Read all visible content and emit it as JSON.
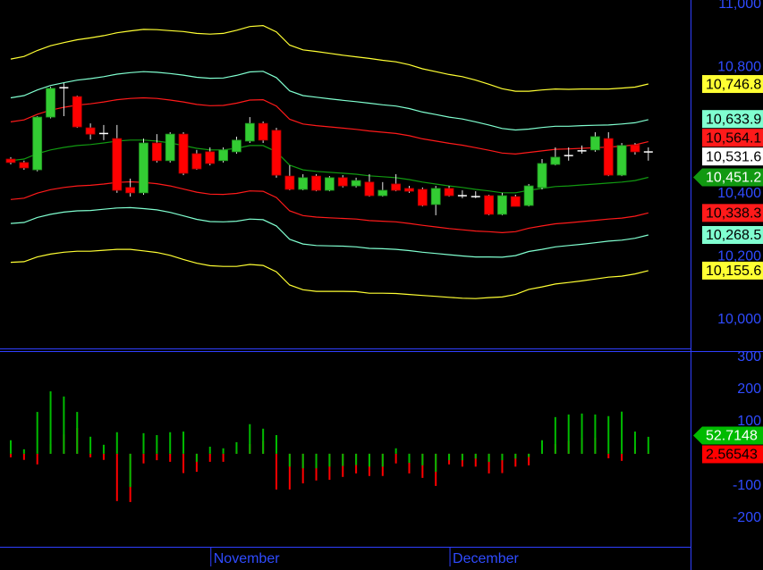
{
  "chart_data": [
    {
      "type": "candlestick",
      "categories": [
        null,
        null,
        null,
        null,
        null,
        null,
        null,
        null,
        null,
        null,
        null,
        null,
        null,
        null,
        null,
        "November",
        null,
        null,
        null,
        null,
        null,
        null,
        null,
        null,
        null,
        null,
        null,
        null,
        null,
        null,
        null,
        null,
        null,
        "December",
        null,
        null,
        null,
        null,
        null,
        null,
        null,
        null,
        null,
        null,
        null,
        null,
        null,
        null,
        null
      ],
      "open": [
        10509,
        10498,
        10475,
        10642,
        10735,
        10707,
        10608,
        10590,
        10574,
        10419,
        10402,
        10560,
        10504,
        10588,
        10526,
        10532,
        10504,
        10532,
        10566,
        10622,
        10600,
        10455,
        10413,
        10455,
        10410,
        10450,
        10424,
        10436,
        10393,
        10430,
        10416,
        10413,
        10365,
        10416,
        10393,
        10390,
        10393,
        10334,
        10390,
        10362,
        10419,
        10492,
        10520,
        10535,
        10538,
        10574,
        10458,
        10554,
        10531.6
      ],
      "high": [
        10515,
        10504,
        10645,
        10738,
        10750,
        10710,
        10622,
        10617,
        10617,
        10447,
        10574,
        10588,
        10594,
        10594,
        10538,
        10546,
        10546,
        10580,
        10642,
        10628,
        10608,
        10489,
        10461,
        10461,
        10455,
        10458,
        10450,
        10461,
        10436,
        10461,
        10424,
        10419,
        10424,
        10424,
        10410,
        10407,
        10396,
        10402,
        10396,
        10430,
        10509,
        10546,
        10546,
        10552,
        10594,
        10594,
        10560,
        10560,
        10546
      ],
      "low": [
        10492,
        10475,
        10470,
        10638,
        10645,
        10608,
        10571,
        10569,
        10402,
        10390,
        10396,
        10498,
        10498,
        10458,
        10475,
        10489,
        10498,
        10526,
        10560,
        10560,
        10450,
        10410,
        10410,
        10407,
        10407,
        10419,
        10419,
        10390,
        10390,
        10407,
        10402,
        10359,
        10331,
        10390,
        10385,
        10385,
        10331,
        10331,
        10359,
        10359,
        10413,
        10489,
        10504,
        10526,
        10532,
        10455,
        10455,
        10523,
        10504
      ],
      "close": [
        10498,
        10481,
        10642,
        10733,
        10735,
        10611,
        10588,
        10590,
        10410,
        10402,
        10560,
        10504,
        10588,
        10464,
        10478,
        10495,
        10538,
        10569,
        10622,
        10569,
        10458,
        10413,
        10450,
        10410,
        10450,
        10424,
        10441,
        10393,
        10410,
        10410,
        10407,
        10362,
        10416,
        10393,
        10393,
        10390,
        10334,
        10393,
        10359,
        10424,
        10495,
        10515,
        10520,
        10535,
        10580,
        10458,
        10552,
        10532,
        10531.6
      ],
      "close_label": "10,531.6",
      "up_color": "#33cc33",
      "down_color": "#ff0000",
      "ylim": [
        9909,
        11013
      ],
      "yticks": [
        {
          "value": 10000,
          "label": "10,000"
        },
        {
          "value": 10200,
          "label": "10,200"
        },
        {
          "value": 10400,
          "label": "10,400"
        },
        {
          "value": 10800,
          "label": "10,800"
        },
        {
          "value": 11000,
          "label": "11,000"
        }
      ],
      "series": [
        {
          "color": "#ffff33",
          "last_label": "10,746.8",
          "values": [
            10826,
            10834,
            10853,
            10868,
            10878,
            10887,
            10893,
            10900,
            10909,
            10915,
            10920,
            10919,
            10916,
            10913,
            10907,
            10905,
            10907,
            10917,
            10929,
            10932,
            10912,
            10870,
            10855,
            10850,
            10844,
            10838,
            10833,
            10828,
            10822,
            10817,
            10808,
            10795,
            10786,
            10777,
            10770,
            10759,
            10746,
            10732,
            10724,
            10724,
            10728,
            10731,
            10730,
            10731,
            10731,
            10731,
            10734,
            10737,
            10746.8
          ]
        },
        {
          "color": "#80ffd0",
          "last_label": "10,633.9",
          "values": [
            10703,
            10710,
            10728,
            10742,
            10751,
            10759,
            10764,
            10770,
            10778,
            10783,
            10786,
            10784,
            10780,
            10775,
            10768,
            10765,
            10766,
            10774,
            10785,
            10787,
            10767,
            10725,
            10710,
            10705,
            10700,
            10695,
            10691,
            10686,
            10681,
            10677,
            10669,
            10658,
            10650,
            10642,
            10636,
            10627,
            10617,
            10606,
            10601,
            10604,
            10609,
            10613,
            10613,
            10615,
            10616,
            10617,
            10620,
            10624,
            10633.9
          ]
        },
        {
          "color": "#ff1a1a",
          "last_label": "10,564.1",
          "values": [
            10627,
            10633,
            10651,
            10664,
            10673,
            10680,
            10684,
            10690,
            10697,
            10701,
            10703,
            10701,
            10696,
            10690,
            10682,
            10678,
            10679,
            10686,
            10696,
            10697,
            10677,
            10635,
            10620,
            10615,
            10611,
            10607,
            10603,
            10598,
            10594,
            10590,
            10583,
            10573,
            10566,
            10559,
            10553,
            10545,
            10537,
            10528,
            10525,
            10530,
            10535,
            10540,
            10541,
            10543,
            10545,
            10547,
            10550,
            10554,
            10564.1
          ]
        },
        {
          "color": "#119911",
          "last_label": "10,451.2",
          "values": [
            10504,
            10509,
            10526,
            10538,
            10546,
            10552,
            10555,
            10560,
            10566,
            10569,
            10569,
            10566,
            10560,
            10552,
            10543,
            10538,
            10538,
            10543,
            10552,
            10552,
            10532,
            10490,
            10475,
            10470,
            10467,
            10464,
            10461,
            10456,
            10453,
            10450,
            10444,
            10436,
            10430,
            10424,
            10419,
            10413,
            10408,
            10402,
            10402,
            10410,
            10416,
            10422,
            10424,
            10427,
            10430,
            10433,
            10436,
            10441,
            10451.2
          ]
        },
        {
          "color": "#ff1a1a",
          "last_label": "10,338.3",
          "values": [
            10381,
            10385,
            10401,
            10412,
            10419,
            10424,
            10426,
            10430,
            10435,
            10437,
            10435,
            10431,
            10424,
            10414,
            10404,
            10398,
            10397,
            10400,
            10408,
            10407,
            10387,
            10345,
            10330,
            10325,
            10323,
            10321,
            10319,
            10314,
            10312,
            10310,
            10305,
            10299,
            10294,
            10289,
            10285,
            10281,
            10279,
            10276,
            10279,
            10290,
            10297,
            10304,
            10307,
            10311,
            10315,
            10319,
            10322,
            10328,
            10338.3
          ]
        },
        {
          "color": "#80ffd0",
          "last_label": "10,268.5",
          "values": [
            10305,
            10308,
            10324,
            10334,
            10341,
            10345,
            10346,
            10350,
            10354,
            10355,
            10352,
            10348,
            10340,
            10329,
            10318,
            10311,
            10310,
            10312,
            10319,
            10317,
            10297,
            10255,
            10240,
            10235,
            10234,
            10233,
            10231,
            10226,
            10225,
            10223,
            10219,
            10214,
            10210,
            10206,
            10202,
            10199,
            10199,
            10198,
            10203,
            10216,
            10223,
            10231,
            10235,
            10239,
            10244,
            10249,
            10252,
            10258,
            10268.5
          ]
        },
        {
          "color": "#ffff33",
          "last_label": "10,155.6",
          "values": [
            10182,
            10184,
            10199,
            10208,
            10214,
            10217,
            10217,
            10220,
            10223,
            10223,
            10218,
            10213,
            10204,
            10191,
            10179,
            10171,
            10169,
            10169,
            10175,
            10172,
            10152,
            10110,
            10095,
            10090,
            10090,
            10090,
            10089,
            10084,
            10084,
            10083,
            10080,
            10077,
            10074,
            10071,
            10068,
            10067,
            10070,
            10072,
            10080,
            10096,
            10104,
            10113,
            10118,
            10123,
            10129,
            10135,
            10138,
            10145,
            10155.6
          ]
        }
      ]
    },
    {
      "type": "bar",
      "ylim": [
        -289,
        319
      ],
      "yticks": [
        300,
        200,
        100,
        -100,
        -200
      ],
      "series": [
        {
          "color": "#ff0000",
          "last_label": "2.56543",
          "values": [
            -11,
            -19,
            -33,
            30,
            60,
            80,
            -11,
            -19,
            -147,
            -150,
            -30,
            -20,
            -25,
            -60,
            -56,
            -25,
            -25,
            10,
            30,
            40,
            -111,
            -111,
            -92,
            -83,
            -81,
            -72,
            -61,
            -69,
            -69,
            -30,
            -61,
            -75,
            -100,
            -33,
            -40,
            -40,
            -61,
            -60,
            -40,
            -36,
            5,
            30,
            40,
            50,
            50,
            -14,
            -22,
            20,
            2.56543
          ]
        },
        {
          "color": "#00bb00",
          "last_label": "52.7148",
          "values": [
            42,
            14,
            130,
            194,
            178,
            130,
            53,
            28,
            67,
            -103,
            64,
            58,
            67,
            69,
            -25,
            22,
            17,
            36,
            92,
            78,
            58,
            -40,
            -45,
            -45,
            -40,
            -38,
            -35,
            -40,
            -40,
            17,
            -28,
            -36,
            -56,
            -20,
            -20,
            -15,
            -25,
            -20,
            -15,
            -10,
            42,
            114,
            122,
            125,
            122,
            117,
            131,
            69,
            52.7148
          ]
        }
      ]
    }
  ]
}
